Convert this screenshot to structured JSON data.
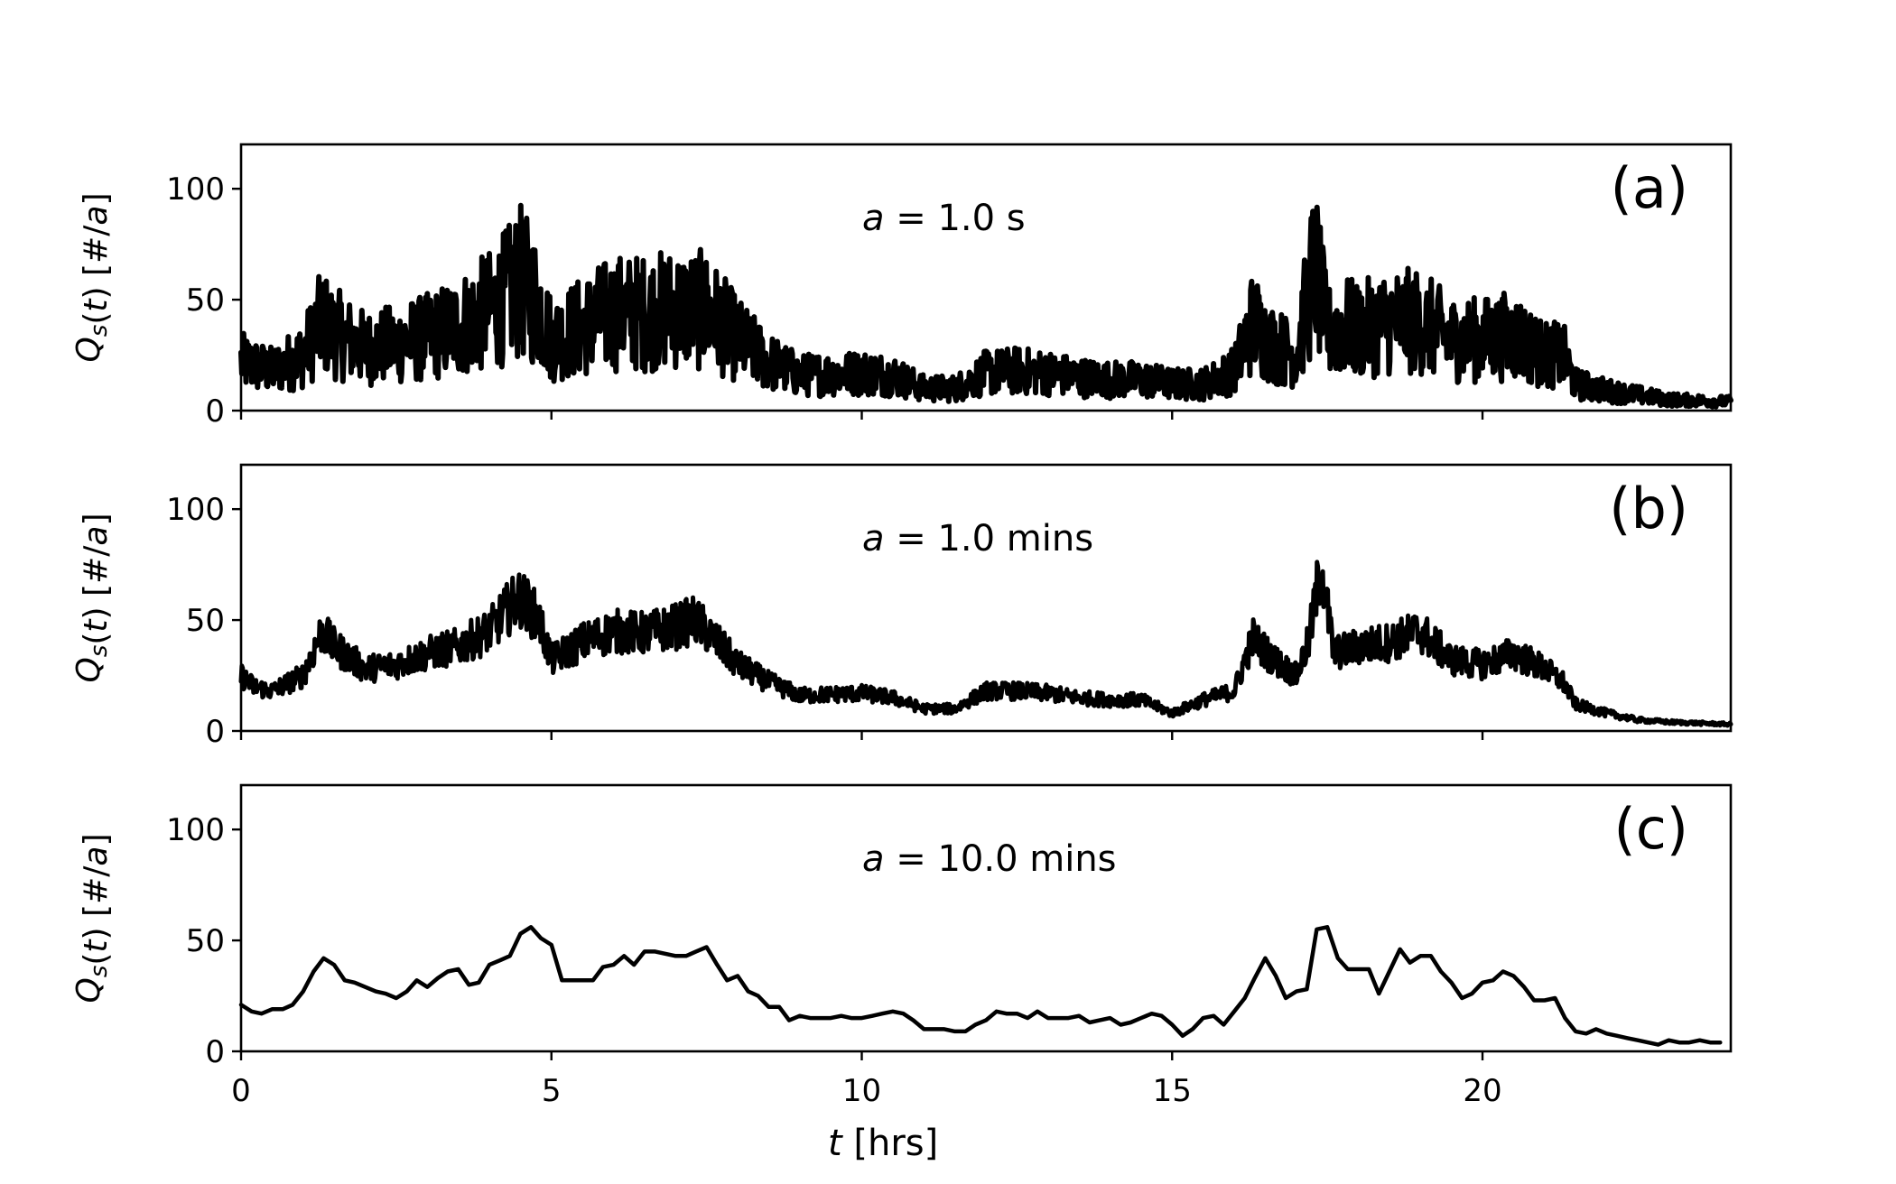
{
  "chart_data": [
    {
      "type": "line",
      "panel_label": "(a)",
      "annotation": "a = 1.0 s",
      "annotation_var": "a",
      "annotation_rest": " = 1.0 s",
      "ylabel": "Qs(t) [#/a]",
      "xlabel": "",
      "xlim": [
        0,
        24
      ],
      "ylim": [
        0,
        120
      ],
      "xticks": [
        0,
        5,
        10,
        15,
        20
      ],
      "xtick_labels_shown": false,
      "yticks": [
        0,
        50,
        100
      ],
      "ytick_labels": [
        "0",
        "50",
        "100"
      ],
      "grid": false,
      "series": [
        {
          "color": "#000000",
          "noise_amplitude": 0.38,
          "x": [
            0,
            0.5,
            1,
            1.3,
            1.5,
            2,
            2.5,
            3,
            3.5,
            4,
            4.3,
            4.5,
            4.8,
            5,
            5.5,
            6,
            6.5,
            7,
            7.5,
            8,
            8.5,
            9,
            10,
            10.5,
            11,
            11.5,
            12,
            12.5,
            13,
            13.5,
            14,
            14.5,
            15,
            15.5,
            16,
            16.3,
            16.6,
            17,
            17.3,
            17.5,
            17.8,
            18,
            18.5,
            19,
            19.5,
            20,
            20.5,
            21,
            21.3,
            21.5,
            22,
            22.5,
            23,
            24
          ],
          "y": [
            22,
            18,
            25,
            40,
            35,
            28,
            30,
            33,
            38,
            45,
            52,
            58,
            48,
            32,
            38,
            44,
            44,
            46,
            45,
            32,
            22,
            16,
            17,
            16,
            10,
            10,
            17,
            18,
            17,
            15,
            14,
            14,
            12,
            12,
            18,
            40,
            30,
            25,
            65,
            35,
            38,
            36,
            40,
            40,
            32,
            32,
            34,
            25,
            25,
            12,
            9,
            7,
            5,
            4
          ]
        }
      ]
    },
    {
      "type": "line",
      "panel_label": "(b)",
      "annotation": "a = 1.0 mins",
      "annotation_var": "a",
      "annotation_rest": " = 1.0 mins",
      "ylabel": "Qs(t) [#/a]",
      "xlabel": "",
      "xlim": [
        0,
        24
      ],
      "ylim": [
        0,
        120
      ],
      "xticks": [
        0,
        5,
        10,
        15,
        20
      ],
      "xtick_labels_shown": false,
      "yticks": [
        0,
        50,
        100
      ],
      "ytick_labels": [
        "0",
        "50",
        "100"
      ],
      "grid": false,
      "series": [
        {
          "color": "#000000",
          "noise_amplitude": 0.14,
          "x": [
            0,
            0.2,
            0.5,
            1,
            1.3,
            1.5,
            2,
            2.5,
            3,
            3.5,
            4,
            4.3,
            4.5,
            4.8,
            5,
            5.5,
            6,
            6.5,
            7,
            7.3,
            7.5,
            8,
            8.5,
            9,
            10,
            10.5,
            11,
            11.5,
            12,
            12.5,
            13,
            13.5,
            14,
            14.5,
            15,
            15.5,
            16,
            16.3,
            16.6,
            17,
            17.2,
            17.4,
            17.6,
            18,
            18.5,
            19,
            19.5,
            20,
            20.5,
            21,
            21.3,
            21.5,
            22,
            22.5,
            23,
            24
          ],
          "y": [
            25,
            20,
            18,
            25,
            45,
            38,
            28,
            30,
            35,
            38,
            45,
            55,
            60,
            50,
            32,
            40,
            45,
            44,
            47,
            50,
            45,
            30,
            22,
            16,
            17,
            15,
            10,
            10,
            18,
            18,
            17,
            15,
            14,
            14,
            8,
            14,
            18,
            42,
            33,
            25,
            40,
            75,
            35,
            38,
            40,
            45,
            32,
            30,
            35,
            28,
            22,
            12,
            8,
            5,
            4,
            3
          ]
        }
      ]
    },
    {
      "type": "line",
      "panel_label": "(c)",
      "annotation": "a = 10.0 mins",
      "annotation_var": "a",
      "annotation_rest": " = 10.0 mins",
      "ylabel": "Qs(t) [#/a]",
      "xlabel": "t [hrs]",
      "xlabel_var": "t",
      "xlabel_rest": "  [hrs]",
      "xlim": [
        0,
        24
      ],
      "ylim": [
        0,
        120
      ],
      "xticks": [
        0,
        5,
        10,
        15,
        20
      ],
      "xtick_labels": [
        "0",
        "5",
        "10",
        "15",
        "20"
      ],
      "xtick_labels_shown": true,
      "yticks": [
        0,
        50,
        100
      ],
      "ytick_labels": [
        "0",
        "50",
        "100"
      ],
      "grid": false,
      "series": [
        {
          "color": "#000000",
          "noise_amplitude": 0,
          "x": [
            0,
            0.17,
            0.33,
            0.5,
            0.67,
            0.83,
            1.0,
            1.17,
            1.33,
            1.5,
            1.67,
            1.83,
            2.0,
            2.17,
            2.33,
            2.5,
            2.67,
            2.83,
            3.0,
            3.17,
            3.33,
            3.5,
            3.67,
            3.83,
            4.0,
            4.17,
            4.33,
            4.5,
            4.67,
            4.83,
            5.0,
            5.17,
            5.33,
            5.5,
            5.67,
            5.83,
            6.0,
            6.17,
            6.33,
            6.5,
            6.67,
            6.83,
            7.0,
            7.17,
            7.33,
            7.5,
            7.67,
            7.83,
            8.0,
            8.17,
            8.33,
            8.5,
            8.67,
            8.83,
            9.0,
            9.17,
            9.33,
            9.5,
            9.67,
            9.83,
            10.0,
            10.17,
            10.33,
            10.5,
            10.67,
            10.83,
            11.0,
            11.17,
            11.33,
            11.5,
            11.67,
            11.83,
            12.0,
            12.17,
            12.33,
            12.5,
            12.67,
            12.83,
            13.0,
            13.17,
            13.33,
            13.5,
            13.67,
            13.83,
            14.0,
            14.17,
            14.33,
            14.5,
            14.67,
            14.83,
            15.0,
            15.17,
            15.33,
            15.5,
            15.67,
            15.83,
            16.0,
            16.17,
            16.33,
            16.5,
            16.67,
            16.83,
            17.0,
            17.17,
            17.33,
            17.5,
            17.67,
            17.83,
            18.0,
            18.17,
            18.33,
            18.5,
            18.67,
            18.83,
            19.0,
            19.17,
            19.33,
            19.5,
            19.67,
            19.83,
            20.0,
            20.17,
            20.33,
            20.5,
            20.67,
            20.83,
            21.0,
            21.17,
            21.33,
            21.5,
            21.67,
            21.83,
            22.0,
            22.17,
            22.33,
            22.5,
            22.67,
            22.83,
            23.0,
            23.17,
            23.33,
            23.5,
            23.67,
            23.83
          ],
          "y": [
            21,
            18,
            17,
            19,
            19,
            21,
            27,
            36,
            42,
            39,
            32,
            31,
            29,
            27,
            26,
            24,
            27,
            32,
            29,
            33,
            36,
            37,
            30,
            31,
            39,
            41,
            43,
            53,
            56,
            51,
            48,
            32,
            32,
            32,
            32,
            38,
            39,
            43,
            39,
            45,
            45,
            44,
            43,
            43,
            45,
            47,
            39,
            32,
            34,
            27,
            25,
            20,
            20,
            14,
            16,
            15,
            15,
            15,
            16,
            15,
            15,
            16,
            17,
            18,
            17,
            14,
            10,
            10,
            10,
            9,
            9,
            12,
            14,
            18,
            17,
            17,
            15,
            18,
            15,
            15,
            15,
            16,
            13,
            14,
            15,
            12,
            13,
            15,
            17,
            16,
            12,
            7,
            10,
            15,
            16,
            12,
            18,
            24,
            33,
            42,
            34,
            24,
            27,
            28,
            55,
            56,
            42,
            37,
            37,
            37,
            26,
            36,
            46,
            40,
            43,
            43,
            36,
            31,
            24,
            26,
            31,
            32,
            36,
            34,
            29,
            23,
            23,
            24,
            15,
            9,
            8,
            10,
            8,
            7,
            6,
            5,
            4,
            3,
            5,
            4,
            4,
            5,
            4,
            4
          ]
        }
      ]
    }
  ]
}
